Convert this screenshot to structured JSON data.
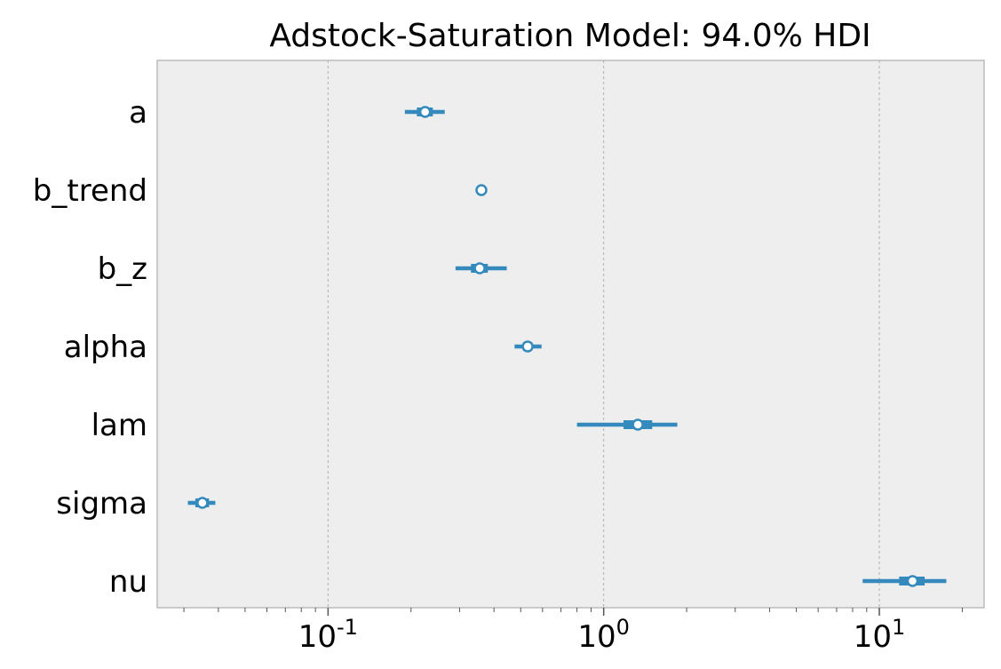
{
  "chart_data": {
    "type": "forest",
    "title": "Adstock-Saturation Model: 94.0% HDI",
    "xscale": "log",
    "xlim": [
      0.024,
      24
    ],
    "x_tick_labels": [
      {
        "base": "10",
        "exp": "-1",
        "value": 0.1
      },
      {
        "base": "10",
        "exp": "0",
        "value": 1
      },
      {
        "base": "10",
        "exp": "1",
        "value": 10
      }
    ],
    "grid": "vertical dashed",
    "parameters": [
      {
        "name": "a",
        "mean": 0.225,
        "hdi_94": [
          0.19,
          0.265
        ],
        "iqr": [
          0.21,
          0.24
        ]
      },
      {
        "name": "b_trend",
        "mean": 0.36,
        "hdi_94": [
          0.355,
          0.365
        ],
        "iqr": [
          0.358,
          0.362
        ]
      },
      {
        "name": "b_z",
        "mean": 0.355,
        "hdi_94": [
          0.29,
          0.445
        ],
        "iqr": [
          0.33,
          0.38
        ]
      },
      {
        "name": "alpha",
        "mean": 0.53,
        "hdi_94": [
          0.475,
          0.595
        ],
        "iqr": [
          0.51,
          0.55
        ]
      },
      {
        "name": "lam",
        "mean": 1.33,
        "hdi_94": [
          0.8,
          1.85
        ],
        "iqr": [
          1.18,
          1.5
        ]
      },
      {
        "name": "sigma",
        "mean": 0.035,
        "hdi_94": [
          0.031,
          0.039
        ],
        "iqr": [
          0.033,
          0.037
        ]
      },
      {
        "name": "nu",
        "mean": 13.2,
        "hdi_94": [
          8.7,
          17.5
        ],
        "iqr": [
          11.8,
          14.6
        ]
      }
    ],
    "colors": {
      "line": "#348abd",
      "marker_face": "#ffffff",
      "background": "#eeeeee",
      "grid": "#b0b0b0"
    }
  }
}
